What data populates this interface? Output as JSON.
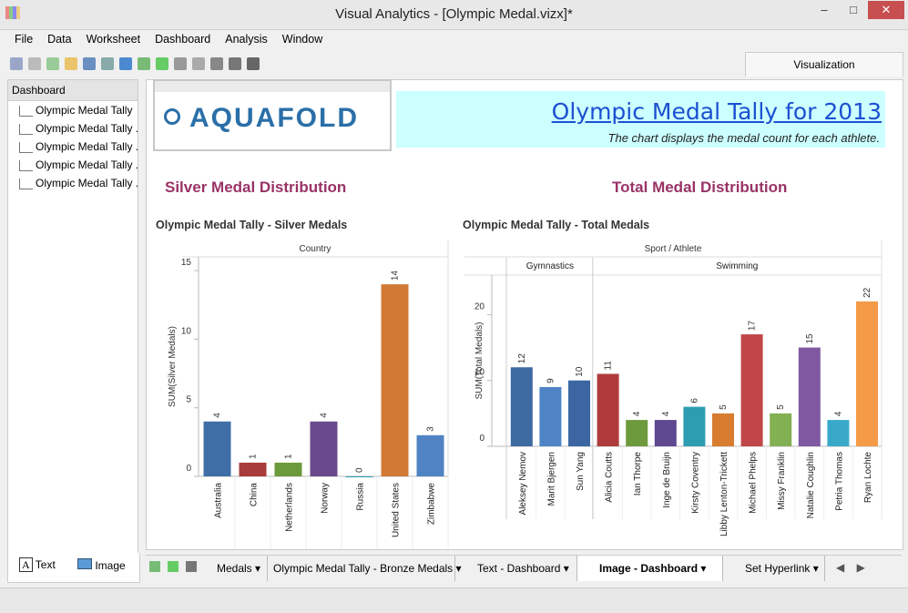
{
  "window": {
    "title": "Visual Analytics - [Olympic Medal.vizx]*"
  },
  "menu": [
    "File",
    "Data",
    "Worksheet",
    "Dashboard",
    "Analysis",
    "Window"
  ],
  "visualization_tab": "Visualization",
  "sidebar": {
    "title": "Dashboard",
    "items": [
      "Olympic Medal Tally",
      "Olympic Medal Tally ...",
      "Olympic Medal Tally ...",
      "Olympic Medal Tally ...",
      "Olympic Medal Tally ..."
    ],
    "tools": [
      "Text",
      "Image"
    ]
  },
  "header": {
    "logo": "AQUAFOLD",
    "title": "Olympic Medal Tally for 2013",
    "subtitle": "The chart displays the medal count for each athlete."
  },
  "sections": [
    "Silver Medal Distribution",
    "Total Medal Distribution"
  ],
  "chart_data": [
    {
      "type": "bar",
      "title": "Olympic Medal Tally - Silver Medals",
      "x_label": "Country",
      "y_label": "SUM(Silver Medals)",
      "categories": [
        "Australia",
        "China",
        "Netherlands",
        "Norway",
        "Russia",
        "United States",
        "Zimbabwe"
      ],
      "values": [
        4,
        1,
        1,
        4,
        0,
        14,
        3
      ],
      "colors": [
        "#3f6ea6",
        "#a83b3b",
        "#6b9a3c",
        "#6a4a8c",
        "#2b9cb2",
        "#d07a36",
        "#4f83c4"
      ],
      "ylim": [
        0,
        16
      ],
      "yticks": [
        0,
        5,
        10,
        15
      ]
    },
    {
      "type": "bar",
      "title": "Olympic Medal Tally - Total Medals",
      "x_label": "Sport / Athlete",
      "y_label": "SUM(Total Medals)",
      "groups": [
        {
          "name": "Gymnastics",
          "categories": [
            "Aleksey Nemov",
            "Marit Bjergen",
            "Sun Yang"
          ],
          "values": [
            12,
            9,
            10
          ],
          "colors": [
            "#3e6aa2",
            "#4e84c6",
            "#3b66a2"
          ]
        },
        {
          "name": "Swimming",
          "categories": [
            "Alicia Coutts",
            "Ian Thorpe",
            "Inge de Bruijn",
            "Kirsty Coventry",
            "Libby Lenton-Trickett",
            "Michael Phelps",
            "Missy Franklin",
            "Natalie Coughlin",
            "Petria Thomas",
            "Ryan Lochte"
          ],
          "values": [
            11,
            4,
            4,
            6,
            5,
            17,
            5,
            15,
            4,
            22
          ],
          "colors": [
            "#b03b3b",
            "#6e9a3e",
            "#5e4890",
            "#2d9db1",
            "#d87c30",
            "#c0464a",
            "#82b052",
            "#8058a2",
            "#39a9c9",
            "#f59a46"
          ]
        }
      ],
      "ylim": [
        0,
        26
      ],
      "yticks": [
        0,
        10,
        20
      ]
    }
  ],
  "tabs": [
    "Medals",
    "Olympic Medal Tally - Bronze Medals",
    "Text - Dashboard",
    "Image - Dashboard",
    "Set Hyperlink"
  ]
}
